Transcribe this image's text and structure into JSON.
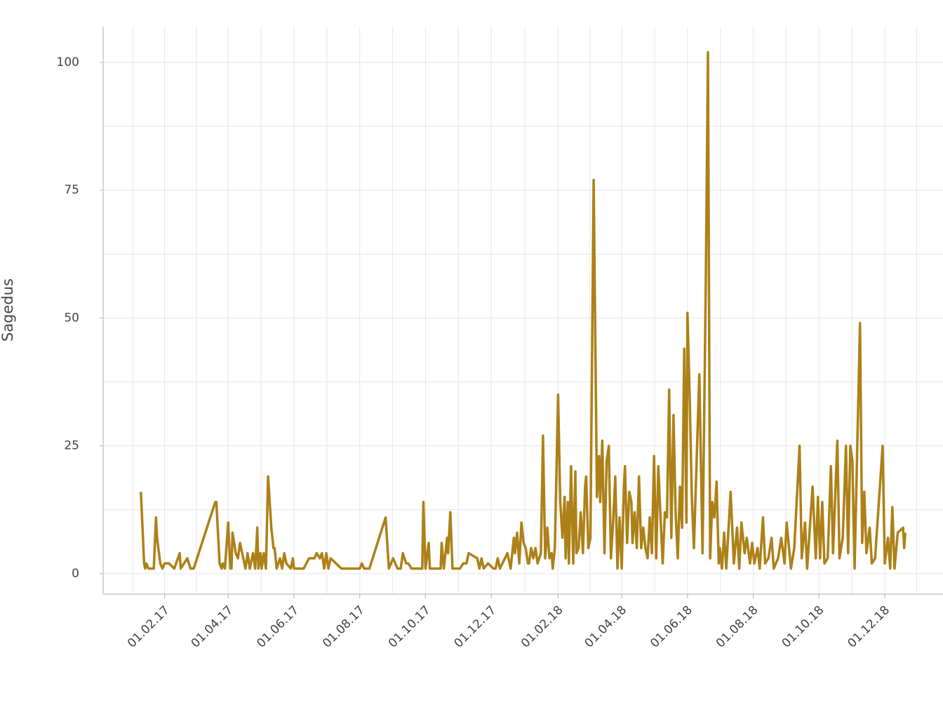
{
  "chart_data": {
    "type": "line",
    "y_label": "Sagedus",
    "xlim": [
      "2016-12-06",
      "2019-01-24"
    ],
    "ylim": [
      -4,
      107
    ],
    "yticks": [
      0,
      25,
      50,
      75,
      100
    ],
    "xticks": [
      {
        "value": "2017-02-01",
        "label": "01.02.17"
      },
      {
        "value": "2017-04-01",
        "label": "01.04.17"
      },
      {
        "value": "2017-06-01",
        "label": "01.06.17"
      },
      {
        "value": "2017-08-01",
        "label": "01.08.17"
      },
      {
        "value": "2017-10-01",
        "label": "01.10.17"
      },
      {
        "value": "2017-12-01",
        "label": "01.12.17"
      },
      {
        "value": "2018-02-01",
        "label": "01.02.18"
      },
      {
        "value": "2018-04-01",
        "label": "01.04.18"
      },
      {
        "value": "2018-06-01",
        "label": "01.06.18"
      },
      {
        "value": "2018-08-01",
        "label": "01.08.18"
      },
      {
        "value": "2018-10-01",
        "label": "01.10.18"
      },
      {
        "value": "2018-12-01",
        "label": "01.12.18"
      }
    ],
    "grid": true,
    "series": [
      {
        "name": "Sagedus",
        "color": "#ad8118",
        "x": [
          "2017-01-10",
          "2017-01-13",
          "2017-01-14",
          "2017-01-15",
          "2017-01-17",
          "2017-01-22",
          "2017-01-24",
          "2017-01-25",
          "2017-01-28",
          "2017-01-30",
          "2017-02-01",
          "2017-02-05",
          "2017-02-10",
          "2017-02-15",
          "2017-02-16",
          "2017-02-22",
          "2017-02-25",
          "2017-02-28",
          "2017-03-20",
          "2017-03-21",
          "2017-03-24",
          "2017-03-26",
          "2017-03-27",
          "2017-03-29",
          "2017-04-01",
          "2017-04-03",
          "2017-04-04",
          "2017-04-05",
          "2017-04-08",
          "2017-04-10",
          "2017-04-12",
          "2017-04-14",
          "2017-04-17",
          "2017-04-19",
          "2017-04-21",
          "2017-04-24",
          "2017-04-26",
          "2017-04-28",
          "2017-04-29",
          "2017-05-01",
          "2017-05-02",
          "2017-05-04",
          "2017-05-06",
          "2017-05-08",
          "2017-05-11",
          "2017-05-13",
          "2017-05-14",
          "2017-05-16",
          "2017-05-19",
          "2017-05-21",
          "2017-05-23",
          "2017-05-25",
          "2017-05-29",
          "2017-05-31",
          "2017-06-01",
          "2017-06-10",
          "2017-06-15",
          "2017-06-20",
          "2017-06-22",
          "2017-06-25",
          "2017-06-27",
          "2017-06-29",
          "2017-07-01",
          "2017-07-03",
          "2017-07-05",
          "2017-07-10",
          "2017-07-15",
          "2017-07-30",
          "2017-08-01",
          "2017-08-03",
          "2017-08-05",
          "2017-08-10",
          "2017-08-25",
          "2017-08-28",
          "2017-09-01",
          "2017-09-05",
          "2017-09-08",
          "2017-09-10",
          "2017-09-13",
          "2017-09-15",
          "2017-09-18",
          "2017-09-28",
          "2017-09-29",
          "2017-10-01",
          "2017-10-04",
          "2017-10-05",
          "2017-10-15",
          "2017-10-16",
          "2017-10-18",
          "2017-10-21",
          "2017-10-22",
          "2017-10-24",
          "2017-10-26",
          "2017-11-02",
          "2017-11-05",
          "2017-11-08",
          "2017-11-10",
          "2017-11-18",
          "2017-11-20",
          "2017-11-22",
          "2017-11-24",
          "2017-11-28",
          "2017-12-03",
          "2017-12-05",
          "2017-12-07",
          "2017-12-09",
          "2017-12-16",
          "2017-12-19",
          "2017-12-22",
          "2017-12-23",
          "2017-12-25",
          "2017-12-27",
          "2017-12-29",
          "2017-12-31",
          "2018-01-02",
          "2018-01-04",
          "2018-01-05",
          "2018-01-07",
          "2018-01-09",
          "2018-01-11",
          "2018-01-13",
          "2018-01-16",
          "2018-01-18",
          "2018-01-20",
          "2018-01-22",
          "2018-01-24",
          "2018-01-26",
          "2018-01-27",
          "2018-01-29",
          "2018-02-01",
          "2018-02-03",
          "2018-02-05",
          "2018-02-07",
          "2018-02-08",
          "2018-02-10",
          "2018-02-11",
          "2018-02-13",
          "2018-02-15",
          "2018-02-17",
          "2018-02-18",
          "2018-02-20",
          "2018-02-22",
          "2018-02-24",
          "2018-02-26",
          "2018-02-27",
          "2018-03-01",
          "2018-03-03",
          "2018-03-06",
          "2018-03-09",
          "2018-03-11",
          "2018-03-12",
          "2018-03-14",
          "2018-03-16",
          "2018-03-18",
          "2018-03-20",
          "2018-03-22",
          "2018-03-24",
          "2018-03-26",
          "2018-03-28",
          "2018-03-30",
          "2018-04-01",
          "2018-04-03",
          "2018-04-04",
          "2018-04-06",
          "2018-04-08",
          "2018-04-10",
          "2018-04-11",
          "2018-04-13",
          "2018-04-15",
          "2018-04-17",
          "2018-04-19",
          "2018-04-21",
          "2018-04-23",
          "2018-04-25",
          "2018-04-27",
          "2018-04-29",
          "2018-05-01",
          "2018-05-03",
          "2018-05-05",
          "2018-05-07",
          "2018-05-09",
          "2018-05-11",
          "2018-05-13",
          "2018-05-15",
          "2018-05-17",
          "2018-05-19",
          "2018-05-21",
          "2018-05-23",
          "2018-05-25",
          "2018-05-27",
          "2018-05-29",
          "2018-05-31",
          "2018-06-01",
          "2018-06-03",
          "2018-06-05",
          "2018-06-07",
          "2018-06-12",
          "2018-06-15",
          "2018-06-18",
          "2018-06-20",
          "2018-06-22",
          "2018-06-24",
          "2018-06-26",
          "2018-06-28",
          "2018-06-30",
          "2018-07-01",
          "2018-07-03",
          "2018-07-05",
          "2018-07-07",
          "2018-07-11",
          "2018-07-14",
          "2018-07-17",
          "2018-07-19",
          "2018-07-21",
          "2018-07-24",
          "2018-07-26",
          "2018-07-29",
          "2018-07-31",
          "2018-08-02",
          "2018-08-05",
          "2018-08-07",
          "2018-08-10",
          "2018-08-12",
          "2018-08-15",
          "2018-08-18",
          "2018-08-20",
          "2018-08-24",
          "2018-08-27",
          "2018-08-30",
          "2018-09-01",
          "2018-09-05",
          "2018-09-08",
          "2018-09-13",
          "2018-09-15",
          "2018-09-18",
          "2018-09-20",
          "2018-09-25",
          "2018-09-28",
          "2018-09-30",
          "2018-10-02",
          "2018-10-04",
          "2018-10-06",
          "2018-10-09",
          "2018-10-12",
          "2018-10-14",
          "2018-10-18",
          "2018-10-20",
          "2018-10-23",
          "2018-10-26",
          "2018-10-28",
          "2018-10-30",
          "2018-11-01",
          "2018-11-03",
          "2018-11-08",
          "2018-11-10",
          "2018-11-12",
          "2018-11-14",
          "2018-11-17",
          "2018-11-19",
          "2018-11-22",
          "2018-11-29",
          "2018-12-01",
          "2018-12-04",
          "2018-12-06",
          "2018-12-08",
          "2018-12-10",
          "2018-12-13",
          "2018-12-18",
          "2018-12-19",
          "2018-12-20"
        ],
        "values": [
          16,
          2,
          1,
          2,
          1,
          1,
          11,
          7,
          2,
          1,
          2,
          2,
          1,
          4,
          1,
          3,
          1,
          1,
          14,
          14,
          2,
          1,
          2,
          1,
          10,
          1,
          1,
          8,
          4,
          3,
          6,
          4,
          1,
          4,
          1,
          4,
          1,
          9,
          1,
          4,
          1,
          4,
          1,
          19,
          9,
          5,
          5,
          1,
          3,
          1,
          4,
          2,
          1,
          3,
          1,
          1,
          3,
          3,
          4,
          3,
          4,
          1,
          4,
          1,
          3,
          2,
          1,
          1,
          1,
          2,
          1,
          1,
          11,
          1,
          3,
          1,
          1,
          4,
          2,
          2,
          1,
          1,
          14,
          1,
          6,
          1,
          1,
          6,
          1,
          7,
          4,
          12,
          1,
          1,
          2,
          2,
          4,
          3,
          1,
          3,
          1,
          2,
          1,
          1,
          3,
          1,
          4,
          1,
          7,
          4,
          8,
          2,
          10,
          6,
          5,
          2,
          2,
          5,
          3,
          5,
          2,
          4,
          27,
          3,
          9,
          3,
          4,
          1,
          5,
          35,
          14,
          7,
          15,
          3,
          14,
          2,
          21,
          2,
          20,
          4,
          5,
          12,
          4,
          17,
          19,
          5,
          7,
          77,
          15,
          23,
          14,
          26,
          4,
          22,
          25,
          3,
          10,
          19,
          1,
          11,
          1,
          17,
          21,
          6,
          16,
          14,
          6,
          12,
          5,
          19,
          5,
          9,
          5,
          3,
          11,
          4,
          23,
          3,
          21,
          11,
          2,
          12,
          11,
          36,
          7,
          31,
          12,
          3,
          17,
          9,
          44,
          10,
          51,
          35,
          15,
          5,
          39,
          4,
          58,
          102,
          3,
          14,
          11,
          18,
          2,
          5,
          1,
          8,
          1,
          16,
          2,
          9,
          1,
          10,
          4,
          7,
          2,
          6,
          2,
          5,
          1,
          11,
          2,
          3,
          7,
          1,
          3,
          7,
          2,
          10,
          1,
          5,
          25,
          3,
          10,
          1,
          17,
          3,
          15,
          3,
          14,
          2,
          3,
          21,
          4,
          26,
          3,
          7,
          25,
          4,
          25,
          22,
          1,
          49,
          6,
          16,
          4,
          9,
          2,
          3,
          25,
          2,
          7,
          1,
          13,
          1,
          8,
          9,
          5,
          8
        ]
      }
    ]
  }
}
